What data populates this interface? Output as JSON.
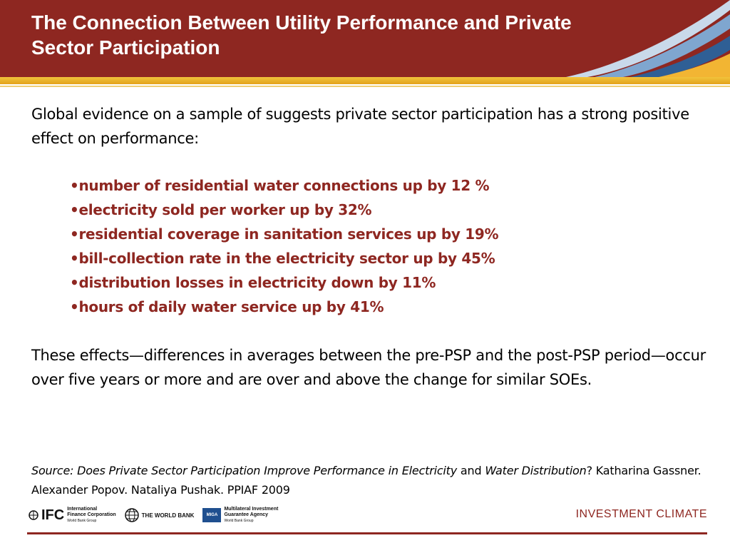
{
  "header": {
    "title_line1": "The Connection Between Utility Performance and Private",
    "title_line2": "Sector Participation"
  },
  "colors": {
    "header_red": "#8e2721",
    "gold": "#f1c33c",
    "bullet_text": "#8e2721"
  },
  "intro": "Global evidence on a sample of  suggests private sector participation has a strong positive effect on performance:",
  "bullets": [
    "number of residential water connections up by 12 %",
    "electricity sold per worker up by 32%",
    "residential coverage in sanitation services up by 19%",
    "bill-collection rate in the electricity sector up by 45%",
    "distribution losses in electricity down by 11%",
    "hours of daily water service up by 41%"
  ],
  "bullet_marker": "•",
  "effects": "These effects—differences in averages between the pre-PSP and the post-PSP period—occur over five years or more and are over and above the change for similar SOEs.",
  "source": {
    "part1": "Source: Does Private Sector Participation Improve Performance in Electricity",
    "part2": " and ",
    "part3": "Water Distribution",
    "part4": "? Katharina Gassner. Alexander Popov. Nataliya Pushak. PPIAF 2009"
  },
  "footer": {
    "ifc_mark": "IFC",
    "ifc_name_line1": "International",
    "ifc_name_line2": "Finance Corporation",
    "ifc_name_line3": "World Bank Group",
    "worldbank": "THE WORLD BANK",
    "miga_mark": "MIGA",
    "miga_line1": "Multilateral Investment",
    "miga_line2": "Guarantee Agency",
    "miga_line3": "World Bank Group",
    "brand": "INVESTMENT CLIMATE"
  }
}
